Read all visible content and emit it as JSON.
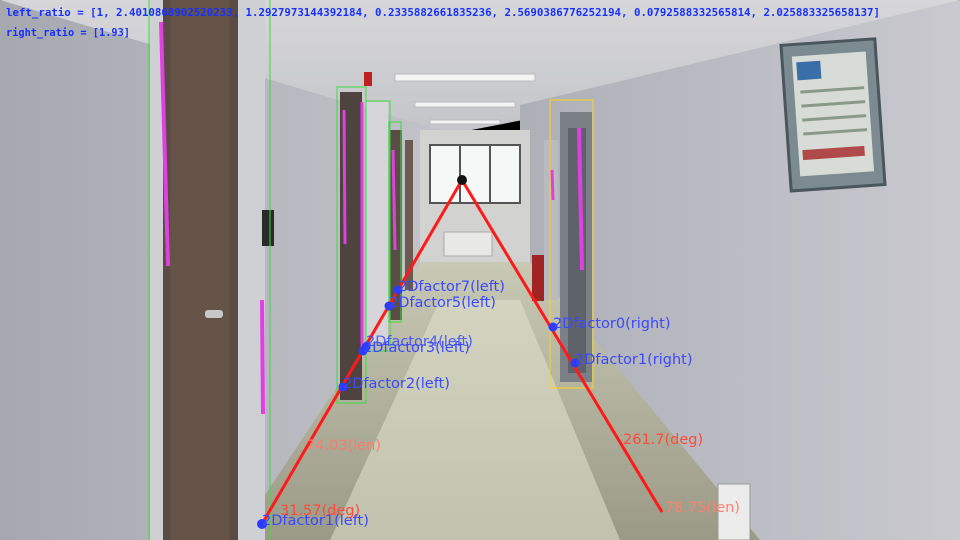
{
  "header": {
    "left_ratio": "left_ratio = [1, 2.4010868902520233, 1.2927973144392184, 0.2335882661835236, 2.5690386776252194, 0.0792588332565814, 2.025883325658137]",
    "right_ratio": "right_ratio = [1.93]"
  },
  "factors": {
    "f7_left": "2Dfactor7(left)",
    "f5_left": "2Dfactor5(left)",
    "f4_left": "2Dfactor4(left)",
    "f3_left": "2Dfactor3(left)",
    "f2_left": "2Dfactor2(left)",
    "f1_left": "2Dfactor1(left)",
    "f0_right": "2Dfactor0(right)",
    "f1_right": "2Dfactor1(right)"
  },
  "measures": {
    "left_len": "74.03(len)",
    "left_deg": "31.57(deg)",
    "right_deg": "261.7(deg)",
    "right_len": "78.75(len)"
  },
  "colors": {
    "guide_line": "#ff1a1a",
    "factor_dot": "#2b3bff",
    "label_blue": "#3b49ff",
    "measure_text": "#ff5a4a",
    "left_box": "#3ddc3d",
    "right_box": "#ffd21a",
    "edge_mark": "#e040e0"
  }
}
